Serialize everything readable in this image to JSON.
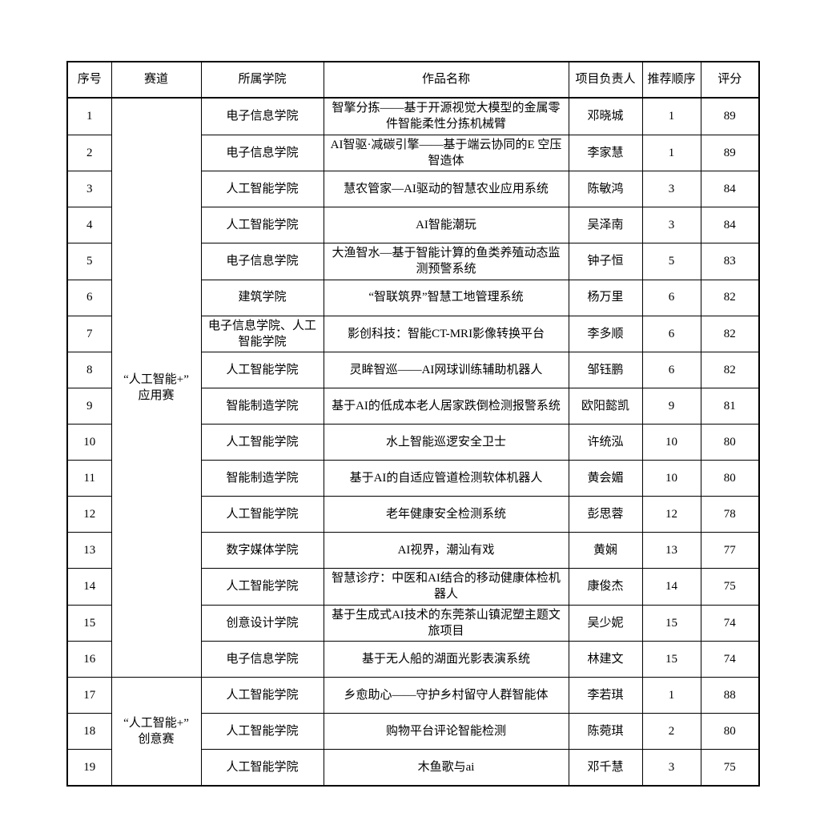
{
  "page": {
    "background_color": "#ffffff",
    "border_color": "#000000",
    "text_color": "#000000"
  },
  "table": {
    "headers": [
      "序号",
      "赛道",
      "所属学院",
      "作品名称",
      "项目负责人",
      "推荐顺序",
      "评分"
    ],
    "track_groups": [
      {
        "label": "“人工智能+”\n应用赛",
        "rowspan": 16
      },
      {
        "label": "“人工智能+”\n创意赛",
        "rowspan": 3
      }
    ],
    "rows": [
      {
        "no": "1",
        "track_group": 0,
        "college": "电子信息学院",
        "title": "智擎分拣——基于开源视觉大模型的金属零件智能柔性分拣机械臂",
        "leader": "邓晓城",
        "order": "1",
        "score": "89"
      },
      {
        "no": "2",
        "track_group": 0,
        "college": "电子信息学院",
        "title": "AI智驱·减碳引擎——基于端云协同的E 空压智造体",
        "leader": "李家慧",
        "order": "1",
        "score": "89"
      },
      {
        "no": "3",
        "track_group": 0,
        "college": "人工智能学院",
        "title": "慧农管家—AI驱动的智慧农业应用系统",
        "leader": "陈敏鸿",
        "order": "3",
        "score": "84"
      },
      {
        "no": "4",
        "track_group": 0,
        "college": "人工智能学院",
        "title": "AI智能潮玩",
        "leader": "吴泽南",
        "order": "3",
        "score": "84"
      },
      {
        "no": "5",
        "track_group": 0,
        "college": "电子信息学院",
        "title": "大渔智水—基于智能计算的鱼类养殖动态监测预警系统",
        "leader": "钟子恒",
        "order": "5",
        "score": "83"
      },
      {
        "no": "6",
        "track_group": 0,
        "college": "建筑学院",
        "title": "“智联筑界”智慧工地管理系统",
        "leader": "杨万里",
        "order": "6",
        "score": "82"
      },
      {
        "no": "7",
        "track_group": 0,
        "college": "电子信息学院、人工智能学院",
        "title": "影创科技：智能CT-MRI影像转换平台",
        "leader": "李多顺",
        "order": "6",
        "score": "82"
      },
      {
        "no": "8",
        "track_group": 0,
        "college": "人工智能学院",
        "title": "灵眸智巡——AI网球训练辅助机器人",
        "leader": "邹钰鹏",
        "order": "6",
        "score": "82"
      },
      {
        "no": "9",
        "track_group": 0,
        "college": "智能制造学院",
        "title": "基于AI的低成本老人居家跌倒检测报警系统",
        "leader": "欧阳懿凯",
        "order": "9",
        "score": "81"
      },
      {
        "no": "10",
        "track_group": 0,
        "college": "人工智能学院",
        "title": "水上智能巡逻安全卫士",
        "leader": "许统泓",
        "order": "10",
        "score": "80"
      },
      {
        "no": "11",
        "track_group": 0,
        "college": "智能制造学院",
        "title": "基于AI的自适应管道检测软体机器人",
        "leader": "黄会媚",
        "order": "10",
        "score": "80"
      },
      {
        "no": "12",
        "track_group": 0,
        "college": "人工智能学院",
        "title": "老年健康安全检测系统",
        "leader": "彭思蓉",
        "order": "12",
        "score": "78"
      },
      {
        "no": "13",
        "track_group": 0,
        "college": "数字媒体学院",
        "title": "AI视界，潮汕有戏",
        "leader": "黄娴",
        "order": "13",
        "score": "77"
      },
      {
        "no": "14",
        "track_group": 0,
        "college": "人工智能学院",
        "title": "智慧诊疗：中医和AI结合的移动健康体检机器人",
        "leader": "康俊杰",
        "order": "14",
        "score": "75"
      },
      {
        "no": "15",
        "track_group": 0,
        "college": "创意设计学院",
        "title": "基于生成式AI技术的东莞茶山镇泥塑主题文旅项目",
        "leader": "吴少妮",
        "order": "15",
        "score": "74"
      },
      {
        "no": "16",
        "track_group": 0,
        "college": "电子信息学院",
        "title": "基于无人船的湖面光影表演系统",
        "leader": "林建文",
        "order": "15",
        "score": "74"
      },
      {
        "no": "17",
        "track_group": 1,
        "college": "人工智能学院",
        "title": "乡愈助心——守护乡村留守人群智能体",
        "leader": "李若琪",
        "order": "1",
        "score": "88"
      },
      {
        "no": "18",
        "track_group": 1,
        "college": "人工智能学院",
        "title": "购物平台评论智能检测",
        "leader": "陈菀琪",
        "order": "2",
        "score": "80"
      },
      {
        "no": "19",
        "track_group": 1,
        "college": "人工智能学院",
        "title": "木鱼歌与ai",
        "leader": "邓千慧",
        "order": "3",
        "score": "75"
      }
    ]
  }
}
